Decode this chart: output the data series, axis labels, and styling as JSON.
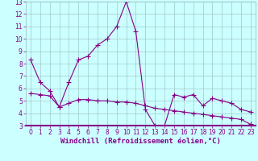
{
  "xlabel": "Windchill (Refroidissement éolien,°C)",
  "line1_x": [
    0,
    1,
    2,
    3,
    4,
    5,
    6,
    7,
    8,
    9,
    10,
    11,
    12,
    13,
    14,
    15,
    16,
    17,
    18,
    19,
    20,
    21,
    22,
    23
  ],
  "line1_y": [
    8.3,
    6.5,
    5.8,
    4.5,
    6.5,
    8.3,
    8.6,
    9.5,
    10.0,
    11.0,
    13.0,
    10.6,
    4.3,
    3.0,
    3.0,
    5.5,
    5.3,
    5.5,
    4.6,
    5.2,
    5.0,
    4.8,
    4.3,
    4.1
  ],
  "line2_x": [
    0,
    1,
    2,
    3,
    4,
    5,
    6,
    7,
    8,
    9,
    10,
    11,
    12,
    13,
    14,
    15,
    16,
    17,
    18,
    19,
    20,
    21,
    22,
    23
  ],
  "line2_y": [
    5.6,
    5.5,
    5.4,
    4.5,
    4.8,
    5.1,
    5.1,
    5.0,
    5.0,
    4.9,
    4.9,
    4.8,
    4.6,
    4.4,
    4.3,
    4.2,
    4.1,
    4.0,
    3.9,
    3.8,
    3.7,
    3.6,
    3.5,
    3.1
  ],
  "line_color": "#880088",
  "bg_color": "#ccffff",
  "grid_color": "#99bbbb",
  "xlim": [
    -0.5,
    23.5
  ],
  "ylim": [
    3,
    13
  ],
  "yticks": [
    3,
    4,
    5,
    6,
    7,
    8,
    9,
    10,
    11,
    12,
    13
  ],
  "xticks": [
    0,
    1,
    2,
    3,
    4,
    5,
    6,
    7,
    8,
    9,
    10,
    11,
    12,
    13,
    14,
    15,
    16,
    17,
    18,
    19,
    20,
    21,
    22,
    23
  ],
  "marker": "+",
  "markersize": 4,
  "linewidth": 0.8,
  "tick_fontsize": 5.5,
  "xlabel_fontsize": 6.5
}
